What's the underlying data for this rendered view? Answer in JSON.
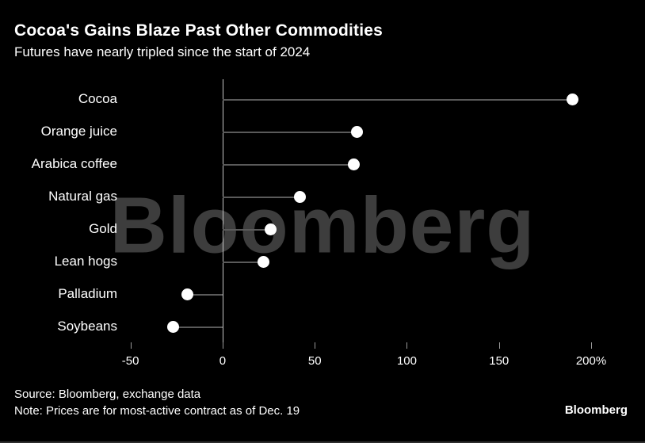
{
  "header": {
    "title": "Cocoa's Gains Blaze Past Other Commodities",
    "subtitle": "Futures have nearly tripled since the start of 2024"
  },
  "chart_data": {
    "type": "scatter",
    "variant": "lollipop-dot-plot",
    "orientation": "horizontal",
    "title": "Cocoa's Gains Blaze Past Other Commodities",
    "subtitle": "Futures have nearly tripled since the start of 2024",
    "categories": [
      "Cocoa",
      "Orange juice",
      "Arabica coffee",
      "Natural gas",
      "Gold",
      "Lean hogs",
      "Palladium",
      "Soybeans"
    ],
    "values": [
      190,
      73,
      71,
      42,
      26,
      22,
      -19,
      -27
    ],
    "unit": "%",
    "xlabel": "",
    "ylabel": "",
    "xlim": [
      -52,
      206
    ],
    "baseline": 0,
    "x_ticks": [
      -50,
      0,
      50,
      100,
      150,
      200
    ],
    "x_tick_labels": [
      "-50",
      "0",
      "50",
      "100",
      "150",
      "200%"
    ],
    "grid": false,
    "legend": "none",
    "dot_color": "#ffffff",
    "stem_color": "#5a5a5a",
    "background_color": "#000000",
    "watermark": "Bloomberg"
  },
  "footer": {
    "source": "Source: Bloomberg, exchange data",
    "note": "Note: Prices are for most-active contract as of Dec. 19",
    "logo": "Bloomberg"
  }
}
